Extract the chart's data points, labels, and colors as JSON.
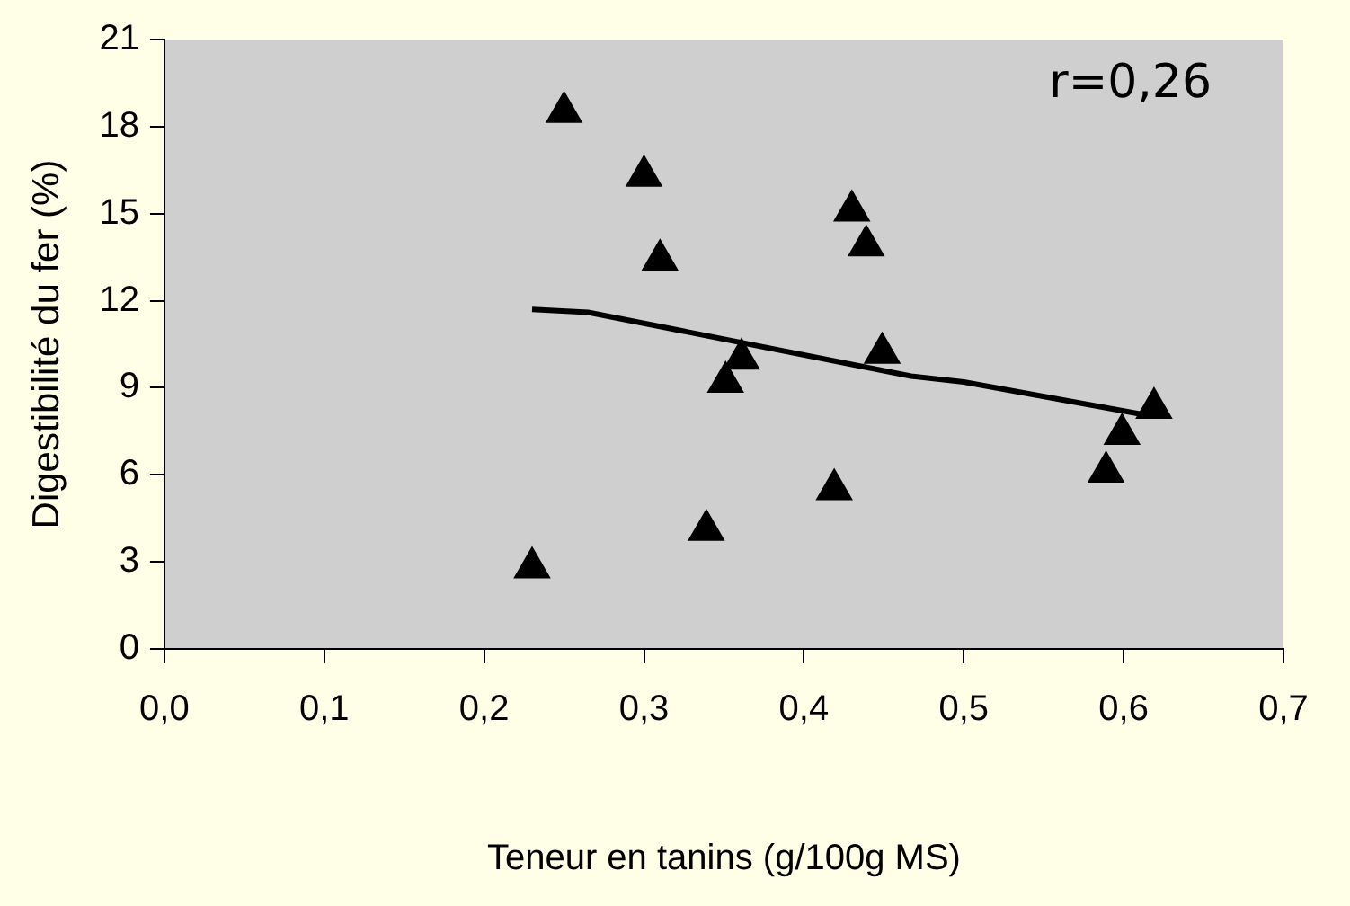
{
  "chart_data": {
    "type": "scatter",
    "xlabel": "Teneur en tanins (g/100g MS)",
    "ylabel": "Digestibilité du fer (%)",
    "annotations": [
      "r=0,26"
    ],
    "series": [
      {
        "color": "#000000",
        "marker": "triangle",
        "x": [
          0.23,
          0.25,
          0.3,
          0.31,
          0.351,
          0.361,
          0.339,
          0.43,
          0.439,
          0.419,
          0.449,
          0.619,
          0.599,
          0.589
        ],
        "values": [
          2.8,
          18.5,
          16.3,
          13.4,
          9.2,
          10.0,
          4.1,
          15.1,
          13.9,
          5.5,
          10.2,
          8.3,
          7.4,
          6.1
        ]
      },
      {
        "type": "line",
        "color": "#000000",
        "marker": "none",
        "x": [
          0.23,
          0.265,
          0.467,
          0.5,
          0.61
        ],
        "values": [
          11.7,
          11.6,
          9.4,
          9.2,
          8.1
        ]
      }
    ],
    "xlim": [
      0,
      0.7
    ],
    "xticks": [
      {
        "value": 0,
        "label": "0,0"
      },
      {
        "value": 0.1,
        "label": "0,1"
      },
      {
        "value": 0.2,
        "label": "0,2"
      },
      {
        "value": 0.3,
        "label": "0,3"
      },
      {
        "value": 0.4,
        "label": "0,4"
      },
      {
        "value": 0.5,
        "label": "0,5"
      },
      {
        "value": 0.6,
        "label": "0,6"
      },
      {
        "value": 0.7,
        "label": "0,7"
      }
    ],
    "ylim": [
      0,
      21
    ],
    "yticks": [
      0,
      3,
      6,
      9,
      12,
      15,
      18,
      21
    ],
    "grid": false,
    "legend": false
  }
}
